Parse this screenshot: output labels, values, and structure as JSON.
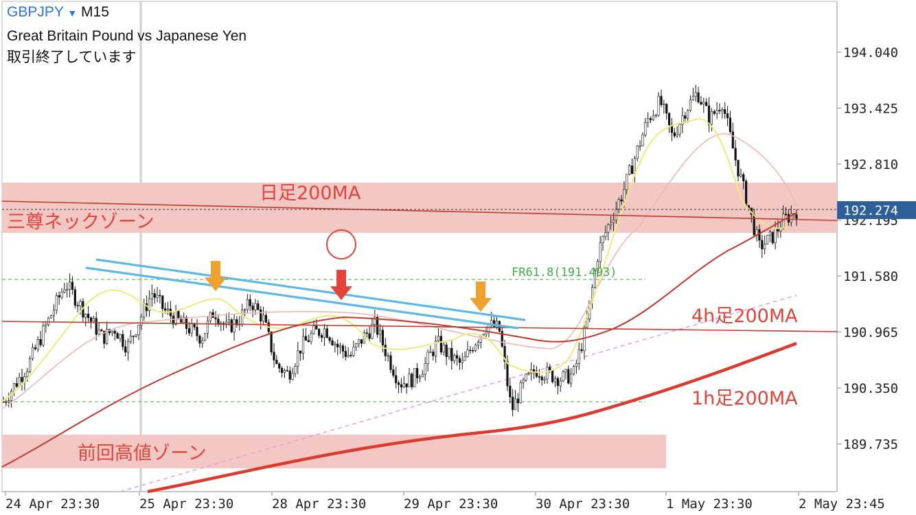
{
  "header": {
    "symbol": "GBPJPY",
    "dropdown_arrow": "▼",
    "timeframe": "M15",
    "description": "Great Britain Pound vs Japanese Yen",
    "status": "取引終了しています"
  },
  "colors": {
    "zone_fill": "#f2c7c4",
    "ma_line": "#c0392b",
    "annotation_text": "#e0443a",
    "trendline": "#5bb8e8",
    "arrow_orange": "#f0a02c",
    "arrow_red": "#e5443a",
    "fib_line": "#3cb043",
    "price_box": "#2d5f9a",
    "ema_yellow": "#eeeb7a",
    "ema_pink": "#f2b7b4",
    "diagonal_dashed": "#e89be0"
  },
  "chart_data": {
    "type": "candlestick",
    "symbol": "GBPJPY",
    "timeframe": "M15",
    "y_ticks": [
      "194.040",
      "193.425",
      "192.810",
      "192.195",
      "191.580",
      "190.965",
      "190.350",
      "189.735"
    ],
    "current_price": "192.274",
    "x_ticks": [
      "24 Apr 23:30",
      "25 Apr 23:30",
      "28 Apr 23:30",
      "29 Apr 23:30",
      "30 Apr 23:30",
      "1 May 23:30",
      "2 May 23:45"
    ],
    "annotations": [
      {
        "text": "日足200MA"
      },
      {
        "text": "三尊ネックゾーン"
      },
      {
        "text": "4h足200MA"
      },
      {
        "text": "1h足200MA"
      },
      {
        "text": "前回高値ゾーン"
      },
      {
        "text": "FR61.8(191.493)"
      }
    ],
    "zones": [
      {
        "name": "三尊ネックゾーン",
        "from": 192.05,
        "to": 192.62
      },
      {
        "name": "前回高値ゾーン",
        "from": 189.42,
        "to": 189.8
      }
    ],
    "levels": [
      {
        "name": "FR61.8",
        "value": 191.493,
        "style": "dashed"
      },
      {
        "name": "lower fib",
        "value": 190.12,
        "style": "dashed"
      }
    ],
    "series": [
      {
        "name": "close",
        "values": [
          190.2,
          190.4,
          190.6,
          190.9,
          191.2,
          191.5,
          191.3,
          191.1,
          190.9,
          191.0,
          190.8,
          191.1,
          191.4,
          191.2,
          191.1,
          191.0,
          190.9,
          191.2,
          191.0,
          191.1,
          191.3,
          191.1,
          190.6,
          190.5,
          190.8,
          190.95,
          191.0,
          190.8,
          190.7,
          190.9,
          191.05,
          190.7,
          190.4,
          190.45,
          190.6,
          190.85,
          190.7,
          190.6,
          190.85,
          191.05,
          191.0,
          190.1,
          190.4,
          190.55,
          190.5,
          190.45,
          190.5,
          191.0,
          191.85,
          192.2,
          192.5,
          192.9,
          193.3,
          193.5,
          193.1,
          193.4,
          193.6,
          193.3,
          193.5,
          192.9,
          192.4,
          191.9,
          192.0,
          192.2,
          192.3
        ]
      }
    ]
  }
}
